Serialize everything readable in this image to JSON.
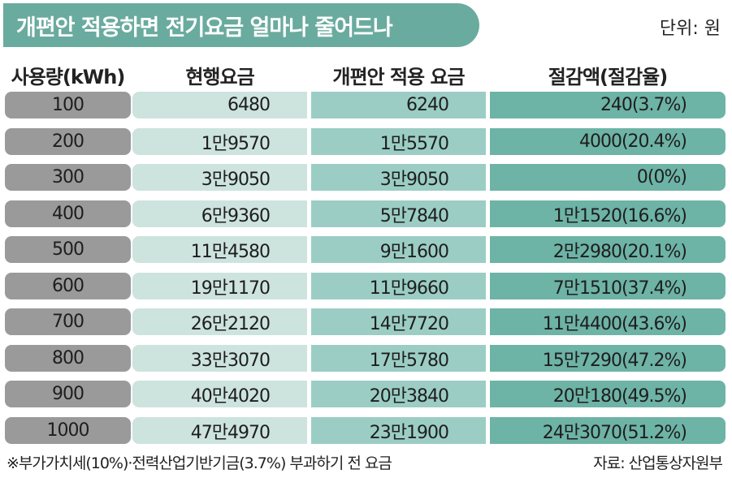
{
  "title": "개편안 적용하면 전기요금 얼마나 줄어드나",
  "unit": "단위: 원",
  "footnote": "※부가가치세(10%)·전력산업기반기금(3.7%) 부과하기 전 요금",
  "source": "자료: 산업통상자원부",
  "colors": {
    "title_banner": "#6aab9f",
    "usage_cell": "#9a9a9a",
    "current_cell": "#cde3de",
    "revised_cell": "#9bcdc4",
    "savings_cell": "#6db3a6"
  },
  "chart_data": {
    "type": "table",
    "columns": [
      "사용량(kWh)",
      "현행요금",
      "개편안 적용 요금",
      "절감액(절감율)"
    ],
    "rows": [
      [
        "100",
        "6480",
        "6240",
        "240(3.7%)"
      ],
      [
        "200",
        "1만9570",
        "1만5570",
        "4000(20.4%)"
      ],
      [
        "300",
        "3만9050",
        "3만9050",
        "0(0%)"
      ],
      [
        "400",
        "6만9360",
        "5만7840",
        "1만1520(16.6%)"
      ],
      [
        "500",
        "11만4580",
        "9만1600",
        "2만2980(20.1%)"
      ],
      [
        "600",
        "19만1170",
        "11만9660",
        "7만1510(37.4%)"
      ],
      [
        "700",
        "26만2120",
        "14만7720",
        "11만4400(43.6%)"
      ],
      [
        "800",
        "33만3070",
        "17만5780",
        "15만7290(47.2%)"
      ],
      [
        "900",
        "40만4020",
        "20만3840",
        "20만180(49.5%)"
      ],
      [
        "1000",
        "47만4970",
        "23만1900",
        "24만3070(51.2%)"
      ]
    ]
  }
}
